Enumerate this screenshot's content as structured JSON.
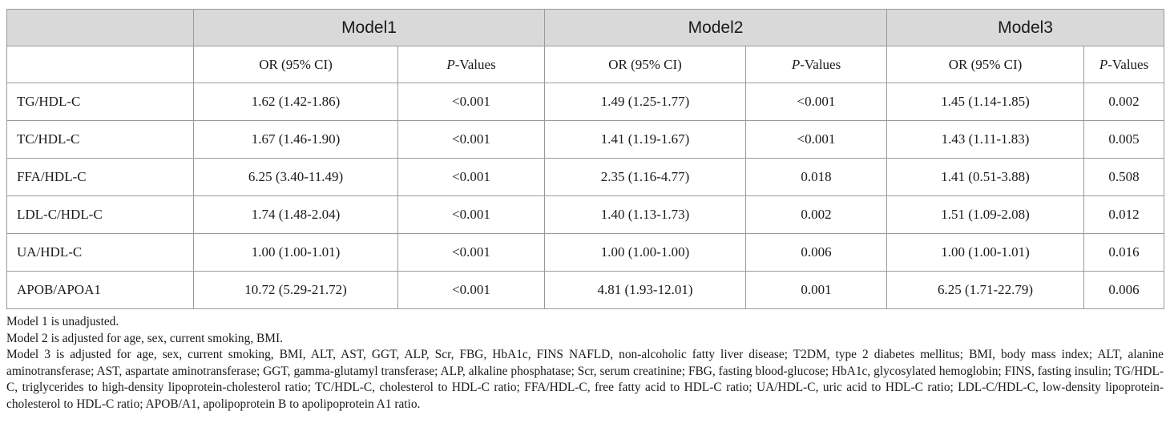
{
  "table": {
    "models": [
      "Model1",
      "Model2",
      "Model3"
    ],
    "sub_headers": {
      "or_label": "OR (95% CI)",
      "p_italic": "P",
      "p_suffix": "-Values"
    },
    "rows": [
      {
        "label": "TG/HDL-C",
        "cells": [
          "1.62 (1.42-1.86)",
          "<0.001",
          "1.49 (1.25-1.77)",
          "<0.001",
          "1.45 (1.14-1.85)",
          "0.002"
        ]
      },
      {
        "label": "TC/HDL-C",
        "cells": [
          "1.67 (1.46-1.90)",
          "<0.001",
          "1.41 (1.19-1.67)",
          "<0.001",
          "1.43 (1.11-1.83)",
          "0.005"
        ]
      },
      {
        "label": "FFA/HDL-C",
        "cells": [
          "6.25 (3.40-11.49)",
          "<0.001",
          "2.35 (1.16-4.77)",
          "0.018",
          "1.41 (0.51-3.88)",
          "0.508"
        ]
      },
      {
        "label": "LDL-C/HDL-C",
        "cells": [
          "1.74 (1.48-2.04)",
          "<0.001",
          "1.40 (1.13-1.73)",
          "0.002",
          "1.51 (1.09-2.08)",
          "0.012"
        ]
      },
      {
        "label": "UA/HDL-C",
        "cells": [
          "1.00 (1.00-1.01)",
          "<0.001",
          "1.00 (1.00-1.00)",
          "0.006",
          "1.00 (1.00-1.01)",
          "0.016"
        ]
      },
      {
        "label": "APOB/APOA1",
        "cells": [
          "10.72 (5.29-21.72)",
          "<0.001",
          "4.81 (1.93-12.01)",
          "0.001",
          "6.25 (1.71-22.79)",
          "0.006"
        ]
      }
    ]
  },
  "footnotes": [
    "Model 1 is unadjusted.",
    "Model 2 is adjusted for age, sex, current smoking, BMI.",
    "Model 3 is adjusted for age, sex, current smoking, BMI, ALT, AST, GGT, ALP, Scr, FBG, HbA1c, FINS NAFLD, non-alcoholic fatty liver disease; T2DM, type 2 diabetes mellitus; BMI, body mass index; ALT, alanine aminotransferase; AST, aspartate aminotransferase; GGT, gamma-glutamyl transferase; ALP, alkaline phosphatase; Scr, serum creatinine; FBG, fasting blood-glucose; HbA1c, glycosylated hemoglobin; FINS, fasting insulin; TG/HDL-C, triglycerides to high-density lipoprotein-cholesterol ratio; TC/HDL-C, cholesterol to HDL-C ratio; FFA/HDL-C, free fatty acid to HDL-C ratio; UA/HDL-C, uric acid to HDL-C ratio; LDL-C/HDL-C, low-density lipoprotein-cholesterol to HDL-C ratio; APOB/A1, apolipoprotein B to apolipoprotein A1 ratio."
  ]
}
